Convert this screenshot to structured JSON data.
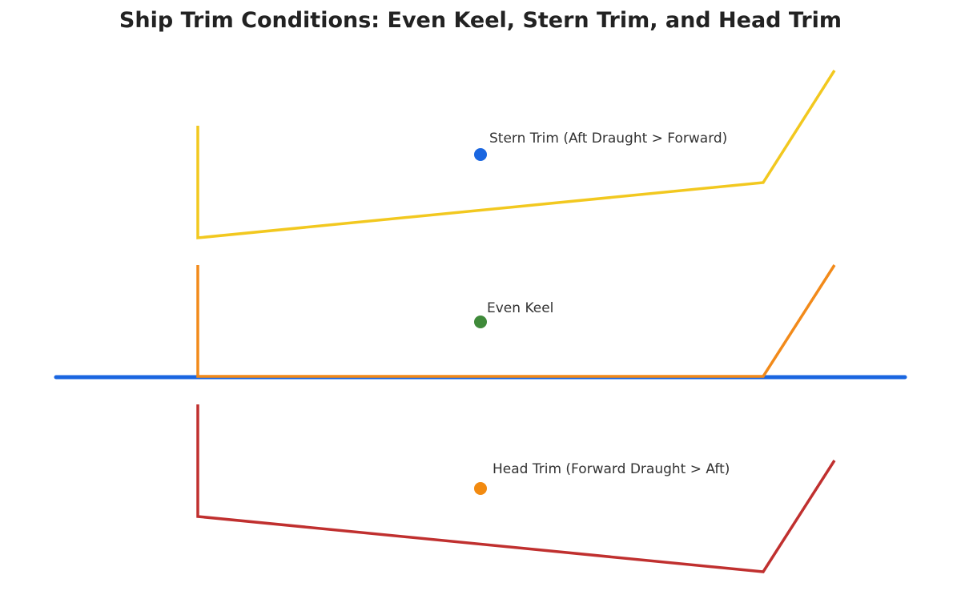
{
  "title": "Ship Trim Conditions: Even Keel, Stern Trim, and Head Trim",
  "waterline_color": "#1a66e0",
  "hulls": [
    {
      "label": "Stern Trim (Aft Draught > Forward)",
      "hull_color": "#f2c81f",
      "marker_color": "#1a66e0"
    },
    {
      "label": "Even Keel",
      "hull_color": "#f28a1a",
      "marker_color": "#3f8a3a"
    },
    {
      "label": "Head Trim (Forward Draught > Aft)",
      "hull_color": "#c0302f",
      "marker_color": "#f28a10"
    }
  ]
}
